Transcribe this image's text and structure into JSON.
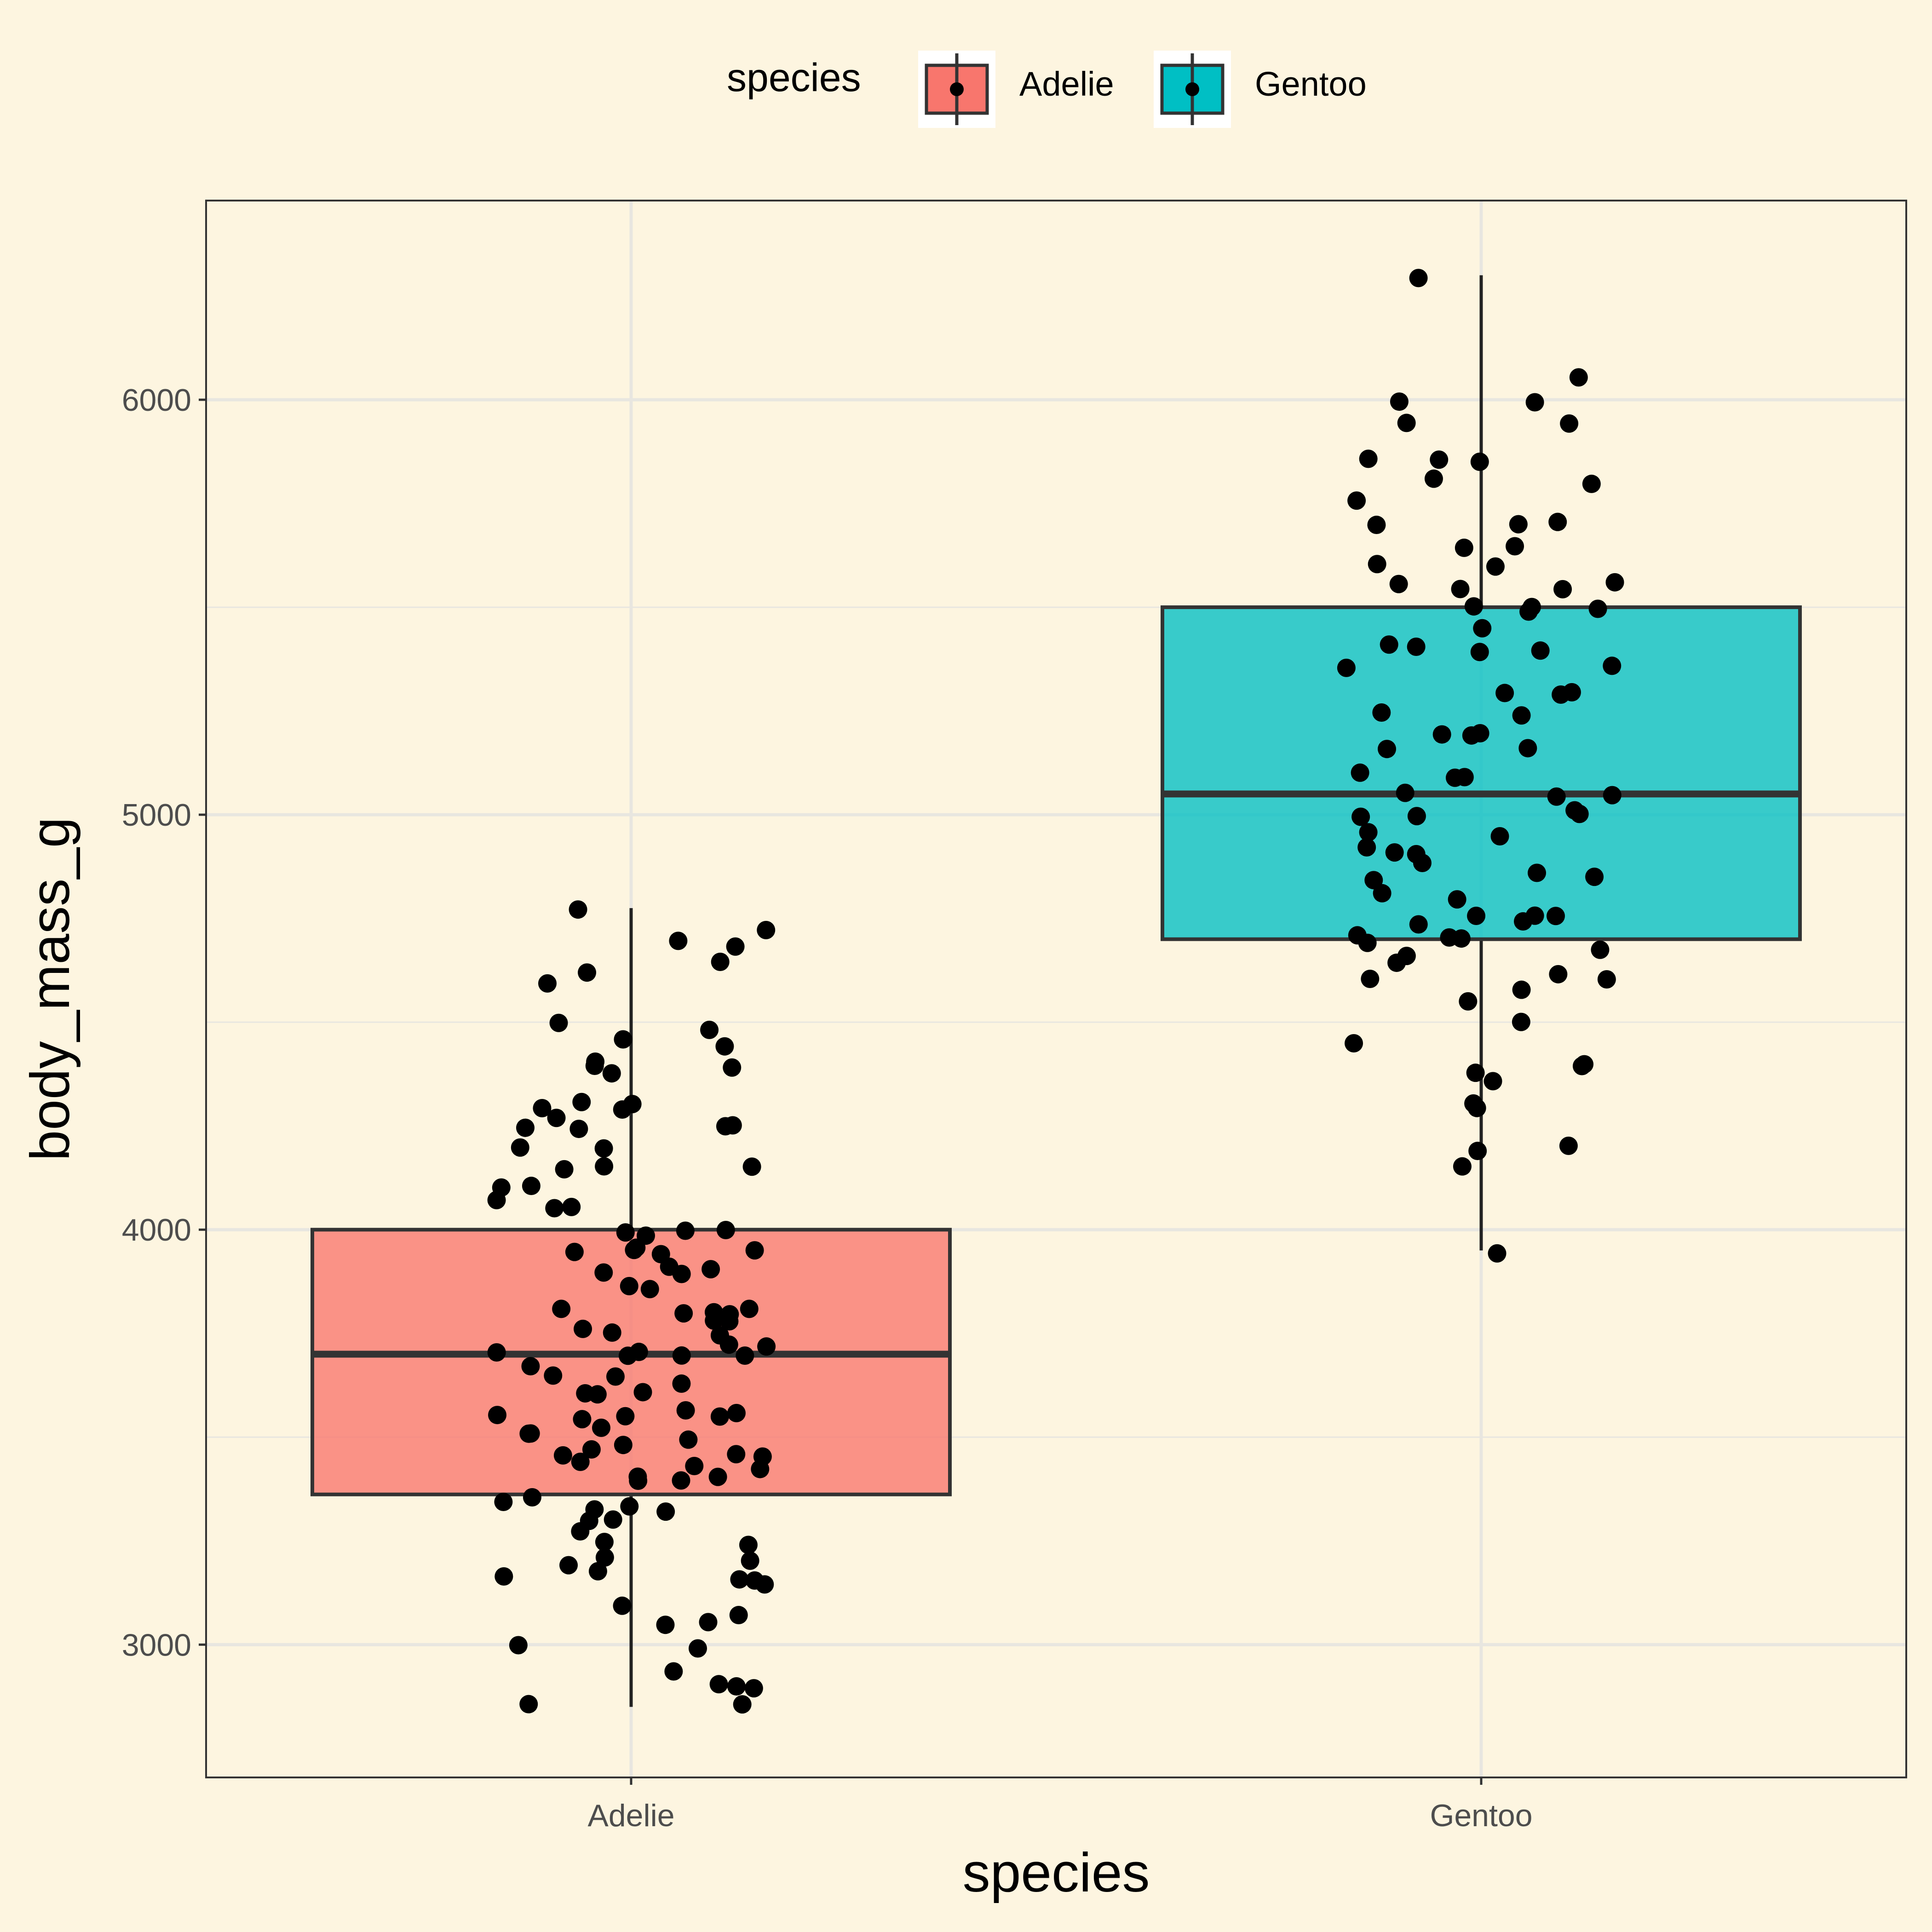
{
  "chart_data": {
    "type": "boxplot",
    "title": "",
    "xlabel": "species",
    "ylabel": "body_mass_g",
    "ylim": [
      2680,
      6480
    ],
    "y_ticks": [
      3000,
      4000,
      5000,
      6000
    ],
    "y_tick_labels": [
      "3000",
      "4000",
      "5000",
      "6000"
    ],
    "y_minor_ticks": [
      3500,
      4500,
      5500
    ],
    "grid": true,
    "legend": {
      "title": "species",
      "position": "top",
      "entries": [
        {
          "label": "Adelie",
          "color": "#F8766D"
        },
        {
          "label": "Gentoo",
          "color": "#00BFC4"
        }
      ]
    },
    "categories": [
      "Adelie",
      "Gentoo"
    ],
    "boxes": [
      {
        "name": "Adelie",
        "color": "#F8766D",
        "q1": 3362,
        "median": 3700,
        "q3": 4000,
        "whisker_low": 2850,
        "whisker_high": 4775
      },
      {
        "name": "Gentoo",
        "color": "#00BFC4",
        "q1": 4700,
        "median": 5050,
        "q3": 5500,
        "whisker_low": 3950,
        "whisker_high": 6300
      }
    ],
    "points": [
      {
        "name": "Adelie",
        "values": [
          4775,
          4725,
          4700,
          4675,
          4650,
          4625,
          4600,
          4500,
          4475,
          4450,
          4450,
          4400,
          4400,
          4400,
          4375,
          4300,
          4300,
          4300,
          4300,
          4275,
          4250,
          4250,
          4250,
          4250,
          4200,
          4200,
          4150,
          4150,
          4150,
          4100,
          4100,
          4075,
          4050,
          4050,
          4000,
          4000,
          4000,
          3975,
          3950,
          3950,
          3950,
          3950,
          3950,
          3900,
          3900,
          3900,
          3900,
          3875,
          3850,
          3800,
          3800,
          3800,
          3800,
          3800,
          3775,
          3775,
          3750,
          3750,
          3750,
          3725,
          3725,
          3700,
          3700,
          3700,
          3700,
          3700,
          3675,
          3650,
          3650,
          3625,
          3600,
          3600,
          3600,
          3575,
          3550,
          3550,
          3550,
          3550,
          3550,
          3525,
          3500,
          3500,
          3500,
          3475,
          3475,
          3450,
          3450,
          3450,
          3450,
          3425,
          3425,
          3400,
          3400,
          3400,
          3400,
          3350,
          3350,
          3325,
          3325,
          3325,
          3300,
          3300,
          3275,
          3250,
          3250,
          3200,
          3200,
          3200,
          3175,
          3175,
          3150,
          3150,
          3150,
          3100,
          3075,
          3050,
          3050,
          3000,
          3000,
          2925,
          2900,
          2900,
          2900,
          2850,
          2850
        ]
      },
      {
        "name": "Gentoo",
        "values": [
          6300,
          6050,
          6000,
          6000,
          5950,
          5950,
          5850,
          5850,
          5850,
          5800,
          5800,
          5750,
          5700,
          5700,
          5700,
          5650,
          5650,
          5600,
          5600,
          5550,
          5550,
          5550,
          5550,
          5500,
          5500,
          5500,
          5500,
          5450,
          5400,
          5400,
          5400,
          5400,
          5350,
          5350,
          5300,
          5300,
          5300,
          5250,
          5250,
          5200,
          5200,
          5200,
          5150,
          5150,
          5100,
          5100,
          5100,
          5050,
          5050,
          5050,
          5000,
          5000,
          5000,
          5000,
          4950,
          4950,
          4925,
          4900,
          4900,
          4875,
          4850,
          4850,
          4850,
          4800,
          4800,
          4750,
          4750,
          4750,
          4750,
          4725,
          4700,
          4700,
          4700,
          4700,
          4675,
          4650,
          4650,
          4625,
          4600,
          4600,
          4575,
          4550,
          4500,
          4450,
          4400,
          4400,
          4375,
          4350,
          4300,
          4300,
          4200,
          4200,
          4150,
          3950
        ]
      }
    ]
  }
}
